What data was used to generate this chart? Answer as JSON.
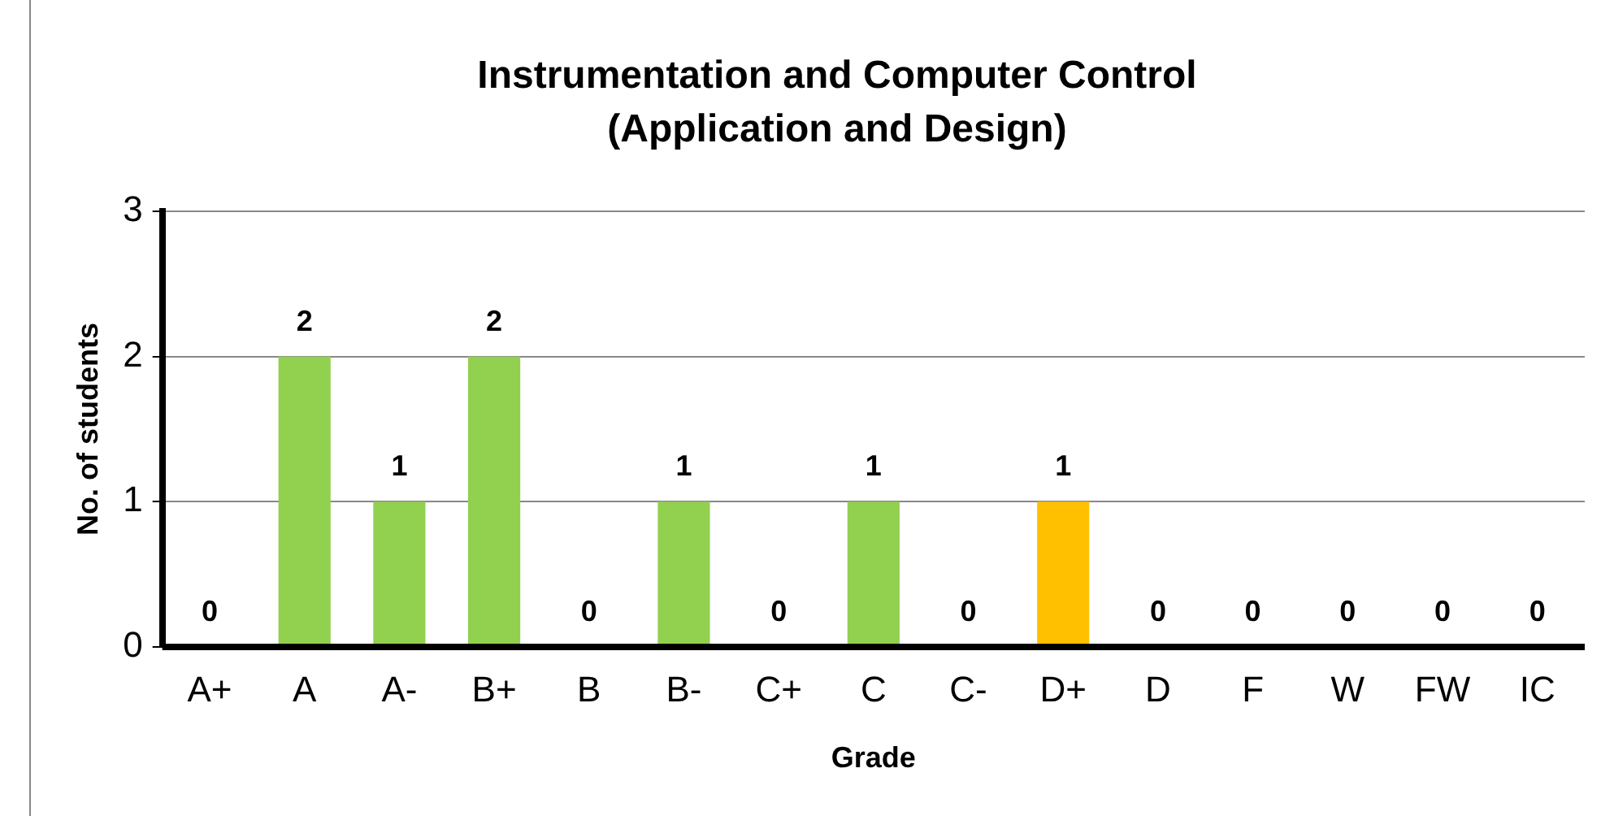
{
  "chart_data": {
    "type": "bar",
    "title": "Instrumentation and Computer Control (Application and Design)",
    "xlabel": "Grade",
    "ylabel": "No. of students",
    "categories": [
      "A+",
      "A",
      "A-",
      "B+",
      "B",
      "B-",
      "C+",
      "C",
      "C-",
      "D+",
      "D",
      "F",
      "W",
      "FW",
      "IC"
    ],
    "values": [
      0,
      2,
      1,
      2,
      0,
      1,
      0,
      1,
      0,
      1,
      0,
      0,
      0,
      0,
      0
    ],
    "colors": [
      "#92d050",
      "#92d050",
      "#92d050",
      "#92d050",
      "#92d050",
      "#92d050",
      "#92d050",
      "#92d050",
      "#92d050",
      "#ffc000",
      "#92d050",
      "#92d050",
      "#92d050",
      "#92d050",
      "#92d050"
    ],
    "ylim": [
      0,
      3
    ],
    "yticks": [
      0,
      1,
      2,
      3
    ],
    "grid": "y",
    "legend": false,
    "data_labels": true
  }
}
